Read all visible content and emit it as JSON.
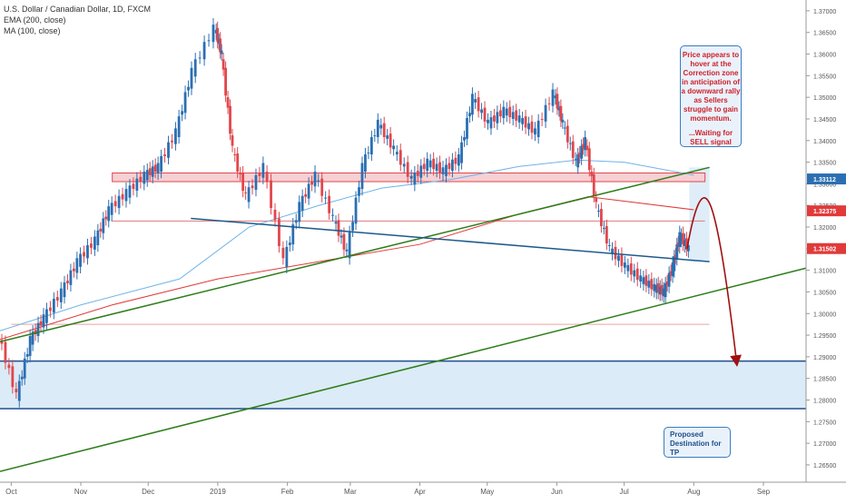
{
  "legend": {
    "title": "U.S. Dollar / Canadian Dollar, 1D, FXCM",
    "ema": "EMA (200, close)",
    "ma": "MA (100, close)"
  },
  "callouts": {
    "top_text": "Price appears to hover at the Correction zone in anticipation of a downward rally as Sellers struggle to gain momentum.",
    "top_wait": "...Waiting for SELL signal",
    "bottom_text": "Proposed Destination for TP"
  },
  "colors": {
    "up": "#2b6fb2",
    "down": "#e0474c",
    "ema": "#e03a3a",
    "ma": "#6fb3e8",
    "trendline_green": "#2e7d1a",
    "trendline_blue": "#1f5a8c",
    "zone_fill": "#dcebf8",
    "resistance_fill": "#f7d0d3",
    "projection": "#a01010"
  },
  "chart_data": {
    "type": "candlestick",
    "y_axis": {
      "min": 1.261,
      "max": 1.3725,
      "ticks": [
        "1.37000",
        "1.36500",
        "1.36000",
        "1.35500",
        "1.35000",
        "1.34500",
        "1.34000",
        "1.33500",
        "1.33000",
        "1.32500",
        "1.32000",
        "1.31500",
        "1.31000",
        "1.30500",
        "1.30000",
        "1.29500",
        "1.29000",
        "1.28500",
        "1.28000",
        "1.27500",
        "1.27000",
        "1.26500"
      ]
    },
    "x_axis": {
      "start": "2018-09-26",
      "end": "2019-09-20",
      "labels": [
        {
          "date": "2018-10-01",
          "text": "Oct"
        },
        {
          "date": "2018-11-01",
          "text": "Nov"
        },
        {
          "date": "2018-12-01",
          "text": "Dec"
        },
        {
          "date": "2019-01-01",
          "text": "2019"
        },
        {
          "date": "2019-02-01",
          "text": "Feb"
        },
        {
          "date": "2019-03-01",
          "text": "Mar"
        },
        {
          "date": "2019-04-01",
          "text": "Apr"
        },
        {
          "date": "2019-05-01",
          "text": "May"
        },
        {
          "date": "2019-06-01",
          "text": "Jun"
        },
        {
          "date": "2019-07-01",
          "text": "Jul"
        },
        {
          "date": "2019-08-01",
          "text": "Aug"
        },
        {
          "date": "2019-09-01",
          "text": "Sep"
        }
      ]
    },
    "price_labels": [
      {
        "value": 1.33112,
        "text": "1.33112",
        "color": "#2b6fb2"
      },
      {
        "value": 1.32375,
        "text": "1.32375",
        "color": "#e03a3a"
      },
      {
        "value": 1.31502,
        "text": "1.31502",
        "color": "#e03a3a"
      }
    ],
    "price_path": [
      [
        "2018-09-26",
        1.295
      ],
      [
        "2018-10-04",
        1.281
      ],
      [
        "2018-10-10",
        1.294
      ],
      [
        "2018-10-16",
        1.299
      ],
      [
        "2018-10-24",
        1.305
      ],
      [
        "2018-10-31",
        1.312
      ],
      [
        "2018-11-08",
        1.317
      ],
      [
        "2018-11-14",
        1.324
      ],
      [
        "2018-11-22",
        1.328
      ],
      [
        "2018-11-30",
        1.332
      ],
      [
        "2018-12-06",
        1.334
      ],
      [
        "2018-12-14",
        1.342
      ],
      [
        "2018-12-21",
        1.356
      ],
      [
        "2018-12-31",
        1.366
      ],
      [
        "2019-01-03",
        1.36
      ],
      [
        "2019-01-08",
        1.338
      ],
      [
        "2019-01-14",
        1.327
      ],
      [
        "2019-01-22",
        1.334
      ],
      [
        "2019-01-31",
        1.312
      ],
      [
        "2019-02-07",
        1.325
      ],
      [
        "2019-02-14",
        1.332
      ],
      [
        "2019-02-22",
        1.322
      ],
      [
        "2019-02-28",
        1.314
      ],
      [
        "2019-03-07",
        1.334
      ],
      [
        "2019-03-14",
        1.344
      ],
      [
        "2019-03-21",
        1.338
      ],
      [
        "2019-03-29",
        1.331
      ],
      [
        "2019-04-05",
        1.335
      ],
      [
        "2019-04-12",
        1.333
      ],
      [
        "2019-04-19",
        1.336
      ],
      [
        "2019-04-25",
        1.35
      ],
      [
        "2019-05-02",
        1.344
      ],
      [
        "2019-05-09",
        1.347
      ],
      [
        "2019-05-16",
        1.345
      ],
      [
        "2019-05-23",
        1.342
      ],
      [
        "2019-05-31",
        1.351
      ],
      [
        "2019-06-04",
        1.344
      ],
      [
        "2019-06-10",
        1.335
      ],
      [
        "2019-06-14",
        1.34
      ],
      [
        "2019-06-19",
        1.325
      ],
      [
        "2019-06-25",
        1.315
      ],
      [
        "2019-07-02",
        1.311
      ],
      [
        "2019-07-09",
        1.308
      ],
      [
        "2019-07-15",
        1.306
      ],
      [
        "2019-07-19",
        1.305
      ],
      [
        "2019-07-23",
        1.311
      ],
      [
        "2019-07-26",
        1.318
      ],
      [
        "2019-07-30",
        1.315
      ]
    ],
    "ema_200": [
      [
        "2018-09-26",
        1.294
      ],
      [
        "2018-11-15",
        1.302
      ],
      [
        "2019-01-01",
        1.308
      ],
      [
        "2019-02-15",
        1.312
      ],
      [
        "2019-04-01",
        1.316
      ],
      [
        "2019-05-15",
        1.323
      ],
      [
        "2019-06-15",
        1.327
      ],
      [
        "2019-08-01",
        1.324
      ]
    ],
    "ma_100": [
      [
        "2018-09-26",
        1.296
      ],
      [
        "2018-11-01",
        1.302
      ],
      [
        "2018-12-15",
        1.308
      ],
      [
        "2019-01-15",
        1.32
      ],
      [
        "2019-02-15",
        1.325
      ],
      [
        "2019-03-15",
        1.329
      ],
      [
        "2019-04-15",
        1.331
      ],
      [
        "2019-05-15",
        1.334
      ],
      [
        "2019-06-10",
        1.3355
      ],
      [
        "2019-07-01",
        1.335
      ],
      [
        "2019-08-01",
        1.332
      ]
    ],
    "resistance_band": {
      "from": "2018-11-15",
      "to": "2019-08-06",
      "low": 1.3305,
      "high": 1.3325
    },
    "level_lines": [
      {
        "value": 1.3214,
        "from": "2018-11-15",
        "to": "2019-08-06",
        "color": "#e07a7a"
      },
      {
        "value": 1.2975,
        "from": "2018-10-01",
        "to": "2019-08-08",
        "color": "#f0a0a0"
      }
    ],
    "target_zone": {
      "from": "2018-09-26",
      "to": "2019-09-20",
      "low": 1.278,
      "high": 1.289
    },
    "trendlines": [
      {
        "name": "rising-support",
        "from": [
          "2018-09-26",
          1.2635
        ],
        "to": [
          "2019-09-20",
          1.3105
        ],
        "color": "#2e7d1a"
      },
      {
        "name": "upper-rising",
        "from": [
          "2018-09-26",
          1.2935
        ],
        "to": [
          "2019-08-08",
          1.3338
        ],
        "color": "#2e7d1a"
      },
      {
        "name": "descending-neckline",
        "from": [
          "2018-12-20",
          1.322
        ],
        "to": [
          "2019-08-08",
          1.312
        ],
        "color": "#1f5a8c"
      }
    ],
    "correction_zone": {
      "from": "2019-07-30",
      "to": "2019-08-08",
      "low": 1.312,
      "high": 1.3338
    },
    "projection_path": [
      [
        "2019-07-29",
        1.315
      ],
      [
        "2019-08-06",
        1.325
      ],
      [
        "2019-08-20",
        1.289
      ]
    ]
  }
}
